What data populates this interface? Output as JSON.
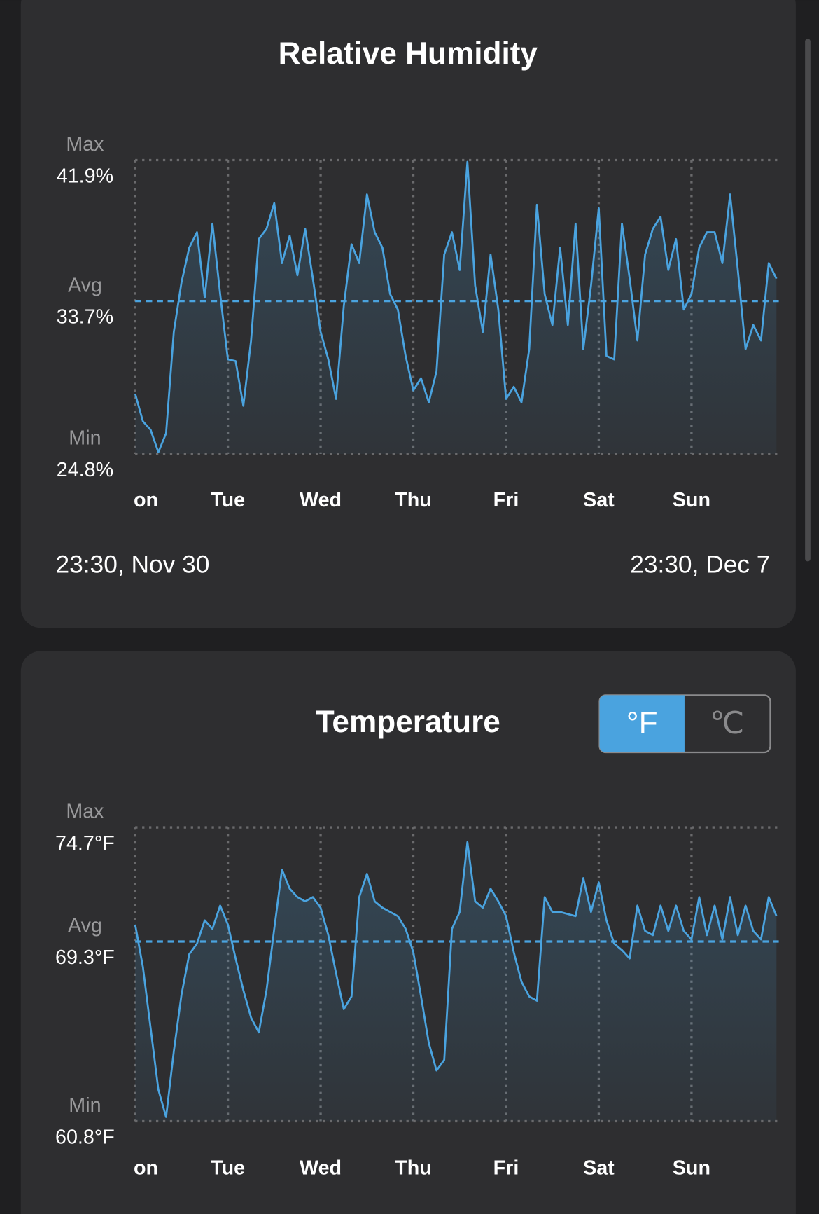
{
  "chart_data": [
    {
      "type": "line",
      "title": "Relative Humidity",
      "color": "#4aa3df",
      "values": [
        28.3,
        26.7,
        26.2,
        24.9,
        26.0,
        31.9,
        34.8,
        36.8,
        37.7,
        33.9,
        38.2,
        34.1,
        30.3,
        30.2,
        27.6,
        31.4,
        37.3,
        37.9,
        39.4,
        35.9,
        37.5,
        35.2,
        37.9,
        35.0,
        31.9,
        30.3,
        28.0,
        33.4,
        37.0,
        35.9,
        39.9,
        37.7,
        36.8,
        34.1,
        33.2,
        30.5,
        28.5,
        29.2,
        27.8,
        29.6,
        36.4,
        37.7,
        35.5,
        41.8,
        34.6,
        31.9,
        36.4,
        33.2,
        28.0,
        28.7,
        27.8,
        30.9,
        39.3,
        34.1,
        32.3,
        36.8,
        32.3,
        38.2,
        30.9,
        34.6,
        39.1,
        30.5,
        30.3,
        38.2,
        35.0,
        31.4,
        36.4,
        37.9,
        38.6,
        35.5,
        37.3,
        33.2,
        34.1,
        36.8,
        37.7,
        37.7,
        35.9,
        39.9,
        35.5,
        30.9,
        32.3,
        31.4,
        35.9,
        35.0
      ],
      "ylim": [
        24.8,
        41.9
      ],
      "yticks": [
        {
          "value": 24.8,
          "label": "24.8%"
        },
        {
          "value": 33.7,
          "label": "33.7%"
        },
        {
          "value": 41.9,
          "label": "41.9%"
        }
      ],
      "ytick_names": [
        "Min",
        "Avg",
        "Max"
      ],
      "xlim": [
        0,
        84
      ],
      "xticks": [
        {
          "value": 0,
          "label": "on"
        },
        {
          "value": 12,
          "label": "Tue"
        },
        {
          "value": 24,
          "label": "Wed"
        },
        {
          "value": 36,
          "label": "Thu"
        },
        {
          "value": 48,
          "label": "Fri"
        },
        {
          "value": 60,
          "label": "Sat"
        },
        {
          "value": 72,
          "label": "Sun"
        }
      ],
      "grid": true,
      "date_range": [
        "23:30,  Nov 30",
        "23:30,  Dec 7"
      ]
    },
    {
      "type": "line",
      "title": "Temperature",
      "color": "#4aa3df",
      "values": [
        70.1,
        68.1,
        65.2,
        62.3,
        61.0,
        64.1,
        66.8,
        68.7,
        69.2,
        70.3,
        69.9,
        71.0,
        70.1,
        68.5,
        67.0,
        65.7,
        65.0,
        67.0,
        69.9,
        72.7,
        71.8,
        71.4,
        71.2,
        71.4,
        70.9,
        69.6,
        67.8,
        66.1,
        66.7,
        71.4,
        72.5,
        71.2,
        70.9,
        70.7,
        70.5,
        69.9,
        68.8,
        66.7,
        64.5,
        63.2,
        63.7,
        69.9,
        70.7,
        74.0,
        71.2,
        70.9,
        71.8,
        71.2,
        70.5,
        68.8,
        67.4,
        66.7,
        66.5,
        71.4,
        70.7,
        70.7,
        70.6,
        70.5,
        72.3,
        70.7,
        72.1,
        70.3,
        69.2,
        68.9,
        68.5,
        71.0,
        69.8,
        69.6,
        71.0,
        69.8,
        71.0,
        69.8,
        69.4,
        71.4,
        69.6,
        71.0,
        69.4,
        71.4,
        69.6,
        71.0,
        69.8,
        69.4,
        71.4,
        70.5
      ],
      "ylim": [
        60.8,
        74.7
      ],
      "yticks": [
        {
          "value": 60.8,
          "label": "60.8°F"
        },
        {
          "value": 69.3,
          "label": "69.3°F"
        },
        {
          "value": 74.7,
          "label": "74.7°F"
        }
      ],
      "ytick_names": [
        "Min",
        "Avg",
        "Max"
      ],
      "xlim": [
        0,
        84
      ],
      "xticks": [
        {
          "value": 0,
          "label": "on"
        },
        {
          "value": 12,
          "label": "Tue"
        },
        {
          "value": 24,
          "label": "Wed"
        },
        {
          "value": 36,
          "label": "Thu"
        },
        {
          "value": 48,
          "label": "Fri"
        },
        {
          "value": 60,
          "label": "Sat"
        },
        {
          "value": 72,
          "label": "Sun"
        }
      ],
      "grid": true,
      "units": [
        "°F",
        "℃"
      ],
      "selected_unit": 0
    }
  ]
}
